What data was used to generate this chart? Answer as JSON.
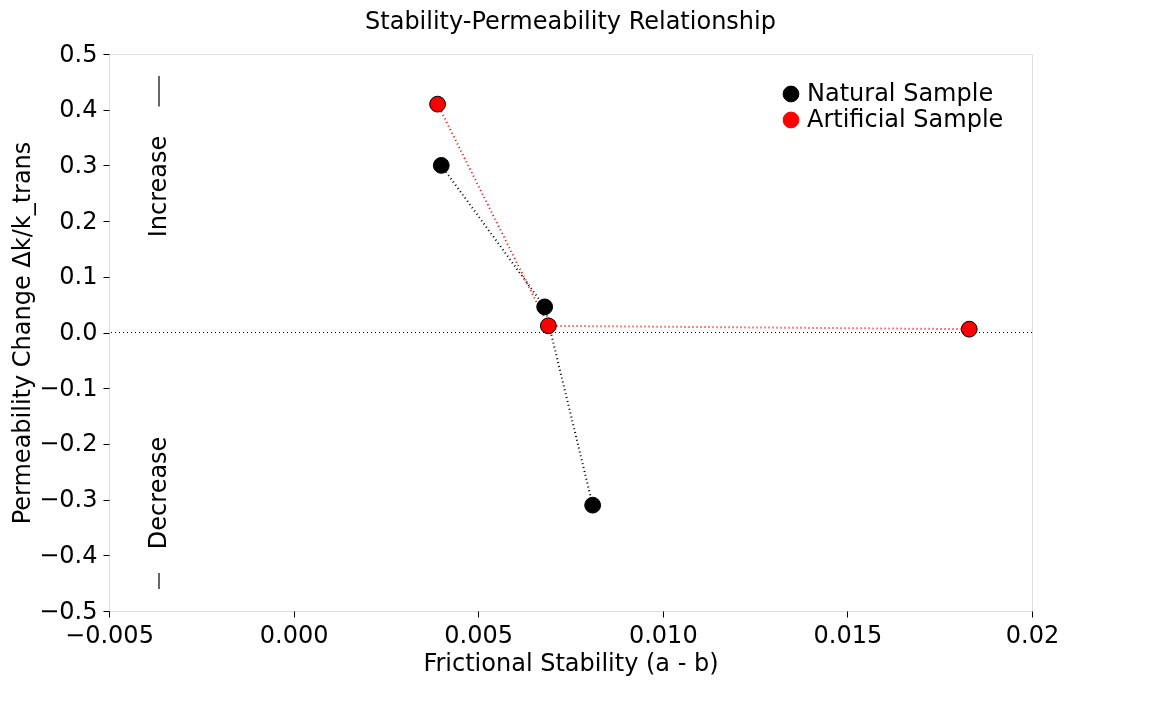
{
  "chart_data": {
    "type": "line",
    "title": "Stability-Permeability Relationship",
    "xlabel": "Frictional Stability (a - b)",
    "ylabel": "Permeability Change Δk/k_trans",
    "series": [
      {
        "name": "Natural Sample",
        "color": "#000000",
        "x": [
          0.004,
          0.0068,
          0.0081
        ],
        "values": [
          0.3,
          0.046,
          -0.31
        ]
      },
      {
        "name": "Artificial Sample",
        "color": "#ff0000",
        "x": [
          0.0039,
          0.0069,
          0.0183
        ],
        "values": [
          0.41,
          0.012,
          0.006
        ]
      }
    ],
    "xlim": [
      -0.005,
      0.02
    ],
    "xticks": [
      {
        "value": -0.005,
        "label": "−0.005"
      },
      {
        "value": 0,
        "label": "0.000"
      },
      {
        "value": 0.005,
        "label": "0.005"
      },
      {
        "value": 0.01,
        "label": "0.010"
      },
      {
        "value": 0.015,
        "label": "0.015"
      },
      {
        "value": 0.02,
        "label": "0.02"
      }
    ],
    "ylim": [
      -0.5,
      0.5
    ],
    "yticks": [
      {
        "value": -0.5,
        "label": "−0.5"
      },
      {
        "value": -0.4,
        "label": "−0.4"
      },
      {
        "value": -0.3,
        "label": "−0.3"
      },
      {
        "value": -0.2,
        "label": "−0.2"
      },
      {
        "value": -0.1,
        "label": "−0.1"
      },
      {
        "value": 0,
        "label": "0.0"
      },
      {
        "value": 0.1,
        "label": "0.1"
      },
      {
        "value": 0.2,
        "label": "0.2"
      },
      {
        "value": 0.3,
        "label": "0.3"
      },
      {
        "value": 0.4,
        "label": "0.4"
      },
      {
        "value": 0.5,
        "label": "0.5"
      }
    ],
    "ref_lines": [
      {
        "axis": "y",
        "value": 0,
        "color": "#000000",
        "line_style": "dotted"
      }
    ],
    "annotations": [
      "Increase",
      "Decrease"
    ],
    "marker": "circle",
    "line_style": "dotted",
    "grid": false,
    "legend": "top right"
  }
}
